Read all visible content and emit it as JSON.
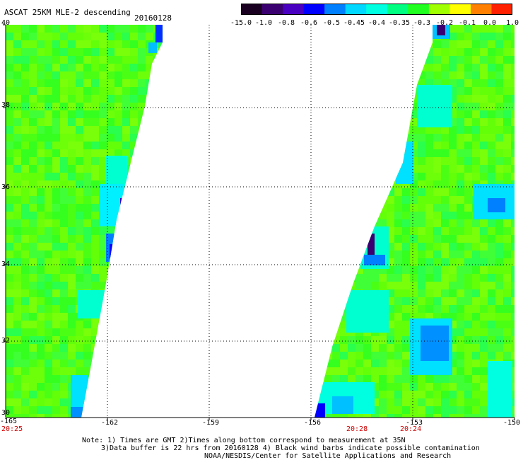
{
  "header": {
    "title": "ASCAT 25KM MLE-2 descending",
    "date": "20160128"
  },
  "colorbar": {
    "labels": [
      "-15.0",
      "-1.0",
      "-0.8",
      "-0.6",
      "-0.5",
      "-0.45",
      "-0.4",
      "-0.35",
      "-0.3",
      "-0.2",
      "-0.1",
      "0.0",
      "1.0"
    ],
    "colors": [
      "#1a0020",
      "#3a0070",
      "#4a00c0",
      "#0000ff",
      "#0080ff",
      "#00d8ff",
      "#00ffe0",
      "#00ff80",
      "#20ff20",
      "#a0ff00",
      "#ffff00",
      "#ff8000",
      "#ff2000"
    ]
  },
  "axes": {
    "x_ticks": [
      "-165",
      "-162",
      "-159",
      "-156",
      "-153",
      "-150"
    ],
    "y_ticks": [
      "40",
      "38",
      "36",
      "34",
      "32",
      "30"
    ],
    "times": [
      "20:25",
      "20:28",
      "20:24"
    ]
  },
  "map": {
    "lon_range": [
      -165,
      -150
    ],
    "lat_range": [
      30,
      40
    ],
    "background": "#ffffff",
    "swath_base_color": "#40ff20"
  },
  "footer": {
    "line1": "Note: 1) Times are GMT 2)Times along bottom correspond to measurement at 35N",
    "line2": "3)Data buffer is 22 hrs from 20160128 4) Black wind barbs indicate possible contamination",
    "line3": "NOAA/NESDIS/Center for Satellite Applications and Research"
  }
}
